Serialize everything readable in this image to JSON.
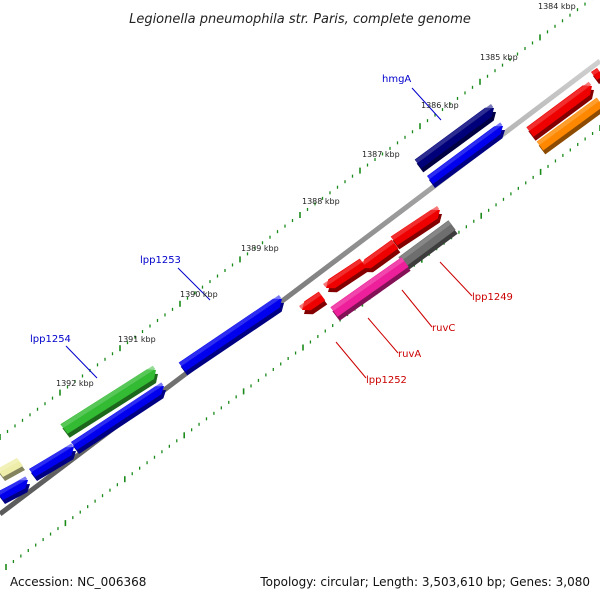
{
  "title": "Legionella pneumophila str. Paris, complete genome",
  "footer": {
    "accession": "Accession: NC_006368",
    "summary": "Topology: circular; Length: 3,503,610 bp; Genes: 3,080"
  },
  "colors": {
    "backbone": "#808080",
    "ticks": "#1a8a1a",
    "label_blue": "#0000cc",
    "label_red": "#cc0000"
  },
  "scale_labels": [
    {
      "id": "1384",
      "text": "1384 kbp"
    },
    {
      "id": "1385",
      "text": "1385 kbp"
    },
    {
      "id": "1386",
      "text": "1386 kbp"
    },
    {
      "id": "1387",
      "text": "1387 kbp"
    },
    {
      "id": "1388",
      "text": "1388 kbp"
    },
    {
      "id": "1389",
      "text": "1389 kbp"
    },
    {
      "id": "1390",
      "text": "1390 kbp"
    },
    {
      "id": "1391",
      "text": "1391 kbp"
    },
    {
      "id": "1392",
      "text": "1392 kbp"
    }
  ],
  "gene_labels": [
    {
      "id": "hmgA",
      "text": "hmgA"
    },
    {
      "id": "lpp1253",
      "text": "lpp1253"
    },
    {
      "id": "lpp1254",
      "text": "lpp1254"
    },
    {
      "id": "lpp1249",
      "text": "lpp1249"
    },
    {
      "id": "ruvC",
      "text": "ruvC"
    },
    {
      "id": "ruvA",
      "text": "ruvA"
    },
    {
      "id": "lpp1252",
      "text": "lpp1252"
    }
  ],
  "features": [
    {
      "id": "f-hmgA",
      "color": "#00007a"
    },
    {
      "id": "f-blue-1386",
      "color": "#0000ee"
    },
    {
      "id": "f-red-1384",
      "color": "#ee0000"
    },
    {
      "id": "f-orange-1384",
      "color": "#ff8800"
    },
    {
      "id": "f-red-edge",
      "color": "#ee0000"
    },
    {
      "id": "f-lpp1249",
      "color": "#6e6e6e"
    },
    {
      "id": "f-red-1388",
      "color": "#ee0000"
    },
    {
      "id": "f-ruvC",
      "color": "#ee0000"
    },
    {
      "id": "f-ruvA-pink",
      "color": "#ee1f9a"
    },
    {
      "id": "f-ruvA",
      "color": "#ee0000"
    },
    {
      "id": "f-lpp1252",
      "color": "#ee0000"
    },
    {
      "id": "f-blue-1390",
      "color": "#0000ee"
    },
    {
      "id": "f-lpp1254",
      "color": "#33bb33"
    },
    {
      "id": "f-blue-1392",
      "color": "#0000ee"
    },
    {
      "id": "f-blue-1393a",
      "color": "#0000ee"
    },
    {
      "id": "f-yellow-edge",
      "color": "#eeeeaa"
    },
    {
      "id": "f-blue-edge",
      "color": "#0000ee"
    }
  ]
}
